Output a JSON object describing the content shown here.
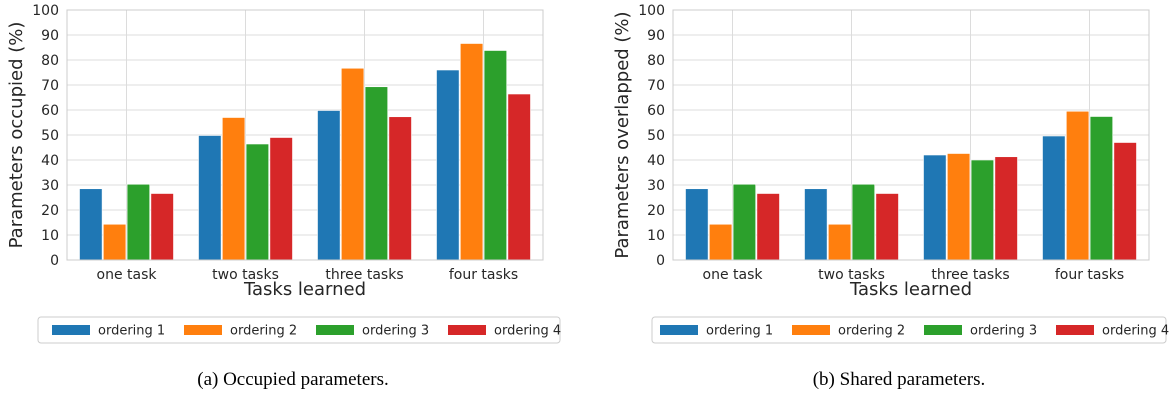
{
  "chart_data": [
    {
      "type": "bar",
      "xlabel": "Tasks learned",
      "ylabel": "Parameters occupied (%)",
      "ylim": [
        0,
        100
      ],
      "yticks": [
        0,
        10,
        20,
        30,
        40,
        50,
        60,
        70,
        80,
        90,
        100
      ],
      "grid": true,
      "legend_placement": "bottom",
      "categories": [
        "one task",
        "two tasks",
        "three tasks",
        "four tasks"
      ],
      "series": [
        {
          "name": "ordering 1",
          "color": "#1f77b4",
          "values": [
            28.5,
            49.8,
            59.8,
            76
          ]
        },
        {
          "name": "ordering 2",
          "color": "#ff7f0e",
          "values": [
            14.3,
            57,
            76.7,
            86.6
          ]
        },
        {
          "name": "ordering 3",
          "color": "#2ca02c",
          "values": [
            30.3,
            46.4,
            69.3,
            83.8
          ]
        },
        {
          "name": "ordering 4",
          "color": "#d62728",
          "values": [
            26.6,
            49,
            57.3,
            66.4
          ]
        }
      ],
      "caption": "(a) Occupied parameters."
    },
    {
      "type": "bar",
      "xlabel": "Tasks learned",
      "ylabel": "Parameters overlapped (%)",
      "ylim": [
        0,
        100
      ],
      "yticks": [
        0,
        10,
        20,
        30,
        40,
        50,
        60,
        70,
        80,
        90,
        100
      ],
      "grid": true,
      "legend_placement": "bottom",
      "categories": [
        "one task",
        "two tasks",
        "three tasks",
        "four tasks"
      ],
      "series": [
        {
          "name": "ordering 1",
          "color": "#1f77b4",
          "values": [
            28.5,
            28.5,
            42,
            49.6
          ]
        },
        {
          "name": "ordering 2",
          "color": "#ff7f0e",
          "values": [
            14.3,
            14.3,
            42.6,
            59.5
          ]
        },
        {
          "name": "ordering 3",
          "color": "#2ca02c",
          "values": [
            30.3,
            30.3,
            40,
            57.4
          ]
        },
        {
          "name": "ordering 4",
          "color": "#d62728",
          "values": [
            26.6,
            26.6,
            41.3,
            47
          ]
        }
      ],
      "caption": "(b) Shared parameters."
    }
  ]
}
